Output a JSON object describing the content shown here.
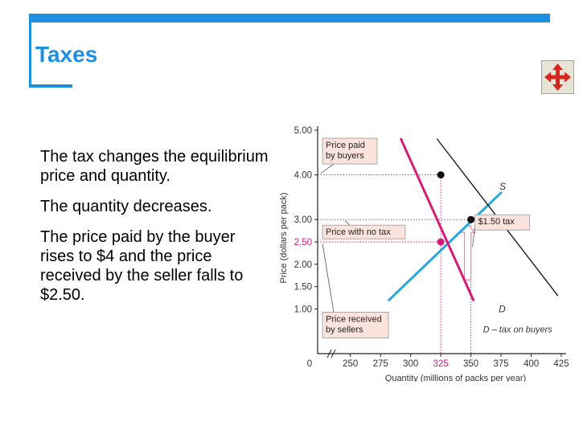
{
  "slide": {
    "title": "Taxes",
    "bullets": [
      "The tax changes the equilibrium price and quantity.",
      "The quantity decreases.",
      "The price paid by the buyer rises to $4 and the price received by the seller falls to $2.50."
    ]
  },
  "icons": {
    "nav_button": "four-way-arrows-icon"
  },
  "colors": {
    "accent": "#1f8fe0",
    "supply": "#2aa7e0",
    "demand": "#1a1a1a",
    "demand_taxed": "#d81b77",
    "annotation_box": "#fbe3dd",
    "highlight_pink": "#d81b77"
  },
  "chart_data": {
    "type": "line",
    "xlabel": "Quantity (millions of packs per year)",
    "ylabel": "Price (dollars per pack)",
    "xlim": [
      0,
      425
    ],
    "ylim": [
      0,
      5
    ],
    "x_axis_break": true,
    "x_ticks": [
      250,
      275,
      300,
      325,
      350,
      375,
      400,
      425
    ],
    "x_tick_labels": [
      "250",
      "275",
      "300",
      "325",
      "350",
      "375",
      "400",
      "425"
    ],
    "x_highlight_tick": 325,
    "origin_label": "0",
    "y_ticks": [
      1.0,
      1.5,
      2.0,
      2.5,
      3.0,
      4.0,
      5.0
    ],
    "y_tick_labels": [
      "1.00",
      "1.50",
      "2.00",
      "2.50",
      "3.00",
      "4.00",
      "5.00"
    ],
    "y_highlight_tick": 2.5,
    "series": [
      {
        "name": "S",
        "points": [
          [
            282,
            1.2
          ],
          [
            375,
            3.6
          ]
        ]
      },
      {
        "name": "D",
        "points": [
          [
            322,
            4.8
          ],
          [
            422,
            1.3
          ]
        ]
      },
      {
        "name": "D – tax on buyers",
        "points": [
          [
            292,
            4.8
          ],
          [
            352,
            1.2
          ]
        ]
      }
    ],
    "equilibria": [
      {
        "x": 350,
        "y": 3.0,
        "label": "no tax"
      },
      {
        "x": 325,
        "y": 4.0,
        "label": "price paid by buyers"
      },
      {
        "x": 325,
        "y": 2.5,
        "label": "price received by sellers"
      }
    ],
    "annotations": [
      {
        "text_lines": [
          "Price paid",
          "by buyers"
        ],
        "ref_y": 4.0
      },
      {
        "text_lines": [
          "Price with no tax"
        ],
        "ref_y": 3.0
      },
      {
        "text_lines": [
          "$1.50 tax"
        ],
        "ref_x": 350
      },
      {
        "text_lines": [
          "Price received",
          "by sellers"
        ],
        "ref_y": 2.5
      }
    ],
    "tax_amount": 1.5
  }
}
